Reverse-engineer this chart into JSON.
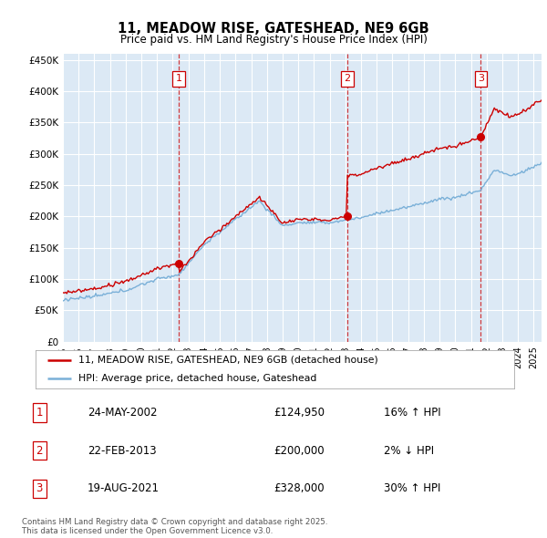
{
  "title": "11, MEADOW RISE, GATESHEAD, NE9 6GB",
  "subtitle": "Price paid vs. HM Land Registry's House Price Index (HPI)",
  "plot_bg_color": "#dce9f5",
  "ylim": [
    0,
    460000
  ],
  "yticks": [
    0,
    50000,
    100000,
    150000,
    200000,
    250000,
    300000,
    350000,
    400000,
    450000
  ],
  "ytick_labels": [
    "£0",
    "£50K",
    "£100K",
    "£150K",
    "£200K",
    "£250K",
    "£300K",
    "£350K",
    "£400K",
    "£450K"
  ],
  "hpi_color": "#7ab0d8",
  "price_color": "#cc0000",
  "sale1_date": 2002.38,
  "sale1_price": 124950,
  "sale2_date": 2013.13,
  "sale2_price": 200000,
  "sale3_date": 2021.63,
  "sale3_price": 328000,
  "legend_entries": [
    "11, MEADOW RISE, GATESHEAD, NE9 6GB (detached house)",
    "HPI: Average price, detached house, Gateshead"
  ],
  "table_rows": [
    [
      "1",
      "24-MAY-2002",
      "£124,950",
      "16% ↑ HPI"
    ],
    [
      "2",
      "22-FEB-2013",
      "£200,000",
      "2% ↓ HPI"
    ],
    [
      "3",
      "19-AUG-2021",
      "£328,000",
      "30% ↑ HPI"
    ]
  ],
  "footer": "Contains HM Land Registry data © Crown copyright and database right 2025.\nThis data is licensed under the Open Government Licence v3.0.",
  "xstart": 1995.0,
  "xend": 2025.5
}
